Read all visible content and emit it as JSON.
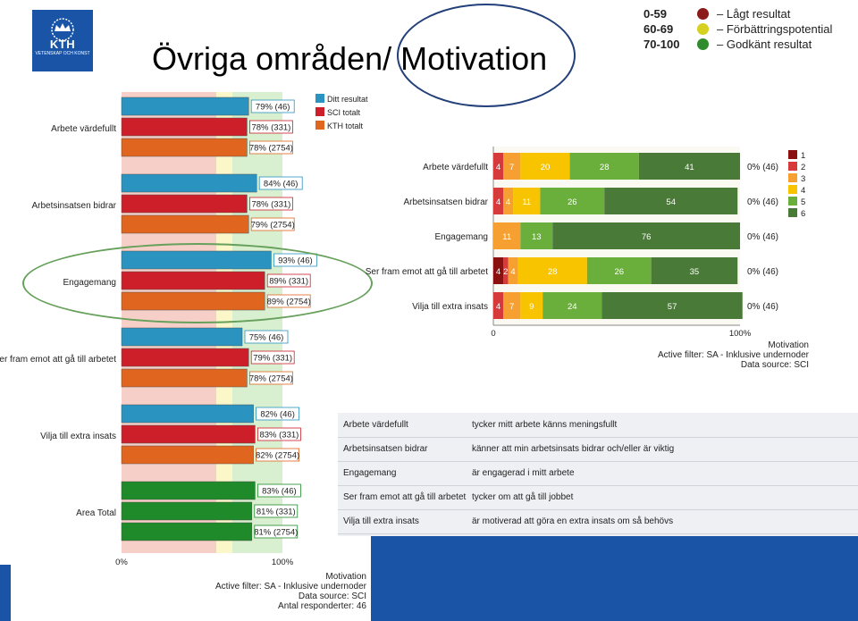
{
  "logo": {
    "text": "KTH",
    "subtext": "VETENSKAP OCH KONST"
  },
  "title": "Övriga områden/ Motivation",
  "color_key": [
    {
      "range": "0-59",
      "color": "#8b1a1a",
      "label": "– Lågt resultat"
    },
    {
      "range": "60-69",
      "color": "#d6d020",
      "label": "– Förbättringspotential"
    },
    {
      "range": "70-100",
      "color": "#2e8b2e",
      "label": "– Godkänt resultat"
    }
  ],
  "chart_data": [
    {
      "type": "bar",
      "orientation": "horizontal",
      "categories": [
        "Arbete värdefullt",
        "Arbetsinsatsen bidrar",
        "Engagemang",
        "Ser fram emot att gå till arbetet",
        "Vilja till extra insats",
        "Area Total"
      ],
      "series": [
        {
          "name": "Ditt resultat",
          "color": "#2a93c0",
          "values": [
            79,
            84,
            93,
            75,
            82,
            83
          ],
          "n": "46"
        },
        {
          "name": "SCI totalt",
          "color": "#cc1f2a",
          "values": [
            78,
            78,
            89,
            79,
            83,
            81
          ],
          "n": "331"
        },
        {
          "name": "KTH totalt",
          "color": "#e0651e",
          "values": [
            78,
            79,
            89,
            78,
            82,
            81
          ],
          "n": "2754"
        }
      ],
      "area_total_color": "#1e8a2a",
      "xlim": [
        0,
        100
      ],
      "tick_labels": [
        "0%",
        "100%"
      ],
      "footer": [
        "Motivation",
        "Active filter: SA - Inklusive undernoder",
        "Data source: SCI",
        "Antal responderter: 46"
      ]
    },
    {
      "type": "bar",
      "orientation": "horizontal",
      "stacked": true,
      "categories": [
        "Arbete värdefullt",
        "Arbetsinsatsen bidrar",
        "Engagemang",
        "Ser fram emot att gå till arbetet",
        "Vilja till extra insats"
      ],
      "series": [
        {
          "name": "1",
          "color": "#8b1010",
          "values": [
            0,
            0,
            0,
            4,
            0
          ]
        },
        {
          "name": "2",
          "color": "#d63a3a",
          "values": [
            4,
            4,
            0,
            2,
            4
          ]
        },
        {
          "name": "3",
          "color": "#f5a030",
          "values": [
            7,
            4,
            11,
            4,
            7
          ]
        },
        {
          "name": "4",
          "color": "#f8c400",
          "values": [
            20,
            11,
            0,
            28,
            9
          ]
        },
        {
          "name": "5",
          "color": "#6aae3c",
          "values": [
            28,
            26,
            13,
            26,
            24
          ]
        },
        {
          "name": "6",
          "color": "#4a7a38",
          "values": [
            41,
            54,
            76,
            35,
            57
          ]
        }
      ],
      "row_right_labels": [
        "0% (46)",
        "0% (46)",
        "0% (46)",
        "0% (46)",
        "0% (46)"
      ],
      "xlim": [
        0,
        100
      ],
      "tick_labels": [
        "0",
        "100%"
      ],
      "footer": [
        "Motivation",
        "Active filter: SA - Inklusive undernoder",
        "Data source: SCI"
      ]
    }
  ],
  "descriptions": [
    {
      "term": "Arbete värdefullt",
      "text": "tycker mitt arbete känns meningsfullt"
    },
    {
      "term": "Arbetsinsatsen bidrar",
      "text": "känner att min arbetsinsats bidrar och/eller är viktig"
    },
    {
      "term": "Engagemang",
      "text": "är engagerad i mitt arbete"
    },
    {
      "term": "Ser fram emot att gå till arbetet",
      "text": "tycker om att gå till jobbet"
    },
    {
      "term": "Vilja till extra insats",
      "text": "är motiverad att göra en extra insats om så behövs"
    }
  ]
}
